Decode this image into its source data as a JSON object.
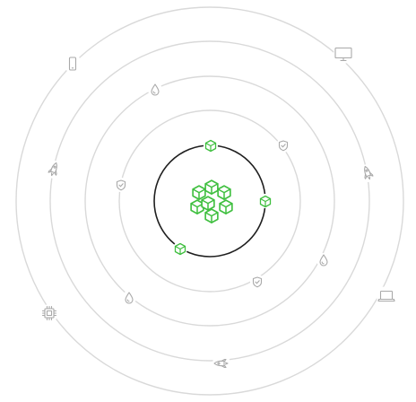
{
  "colors": {
    "orbit_ring": "#d9d9d9",
    "core_ring": "#1f1f1f",
    "icon_gray": "#a9a9a9",
    "accent_green": "#3fbf3f",
    "background": "#ffffff"
  },
  "center_icon": "cube-cluster-icon",
  "core_orbit": {
    "icons": [
      "cube-icon",
      "cube-icon",
      "cube-icon"
    ]
  },
  "orbit_2": {
    "icons": [
      "shield-check-icon",
      "shield-check-icon",
      "shield-check-icon"
    ]
  },
  "orbit_3": {
    "icons": [
      "drop-icon",
      "drop-icon",
      "drop-icon"
    ]
  },
  "orbit_4": {
    "icons": [
      "rocket-icon",
      "rocket-icon"
    ]
  },
  "orbit_5": {
    "icons": [
      "smartphone-icon",
      "monitor-icon",
      "laptop-icon",
      "chip-icon"
    ]
  }
}
